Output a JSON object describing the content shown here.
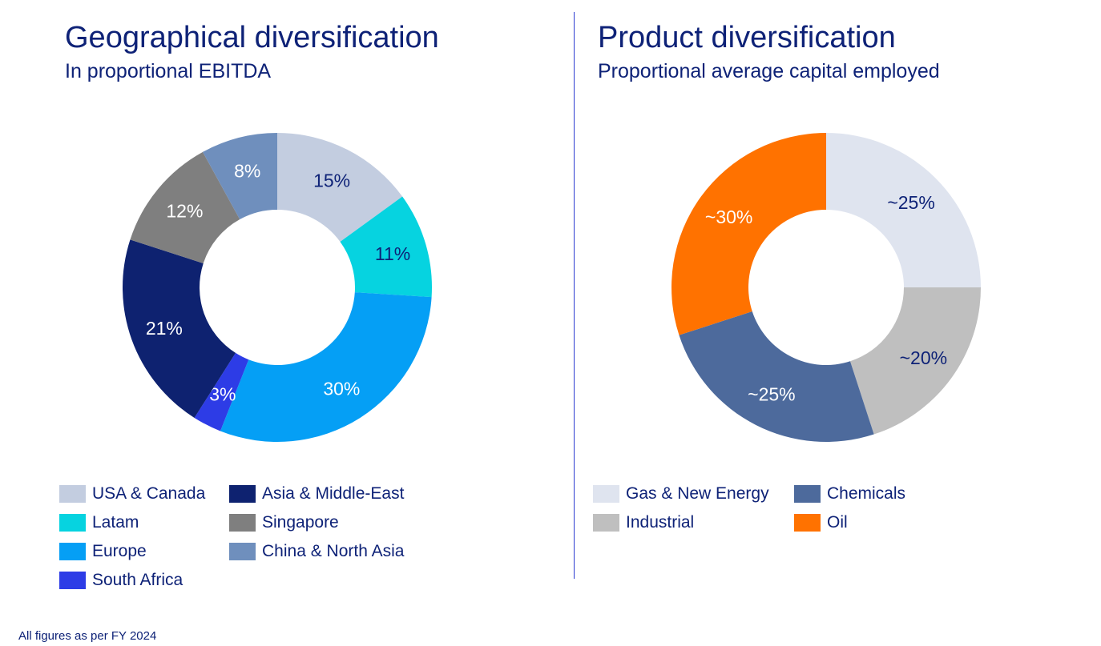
{
  "chart_data": [
    {
      "type": "pie",
      "title": "Geographical diversification",
      "subtitle": "In proportional EBITDA",
      "slices": [
        {
          "name": "USA & Canada",
          "value": 15,
          "label": "15%",
          "color": "#c3cde0",
          "label_color": "#0e2277"
        },
        {
          "name": "Latam",
          "value": 11,
          "label": "11%",
          "color": "#06d3e0",
          "label_color": "#0e2277"
        },
        {
          "name": "Europe",
          "value": 30,
          "label": "30%",
          "color": "#059ff5",
          "label_color": "#ffffff"
        },
        {
          "name": "South Africa",
          "value": 3,
          "label": "3%",
          "color": "#2d3ce6",
          "label_color": "#ffffff"
        },
        {
          "name": "Asia & Middle-East",
          "value": 21,
          "label": "21%",
          "color": "#0e2270",
          "label_color": "#ffffff"
        },
        {
          "name": "Singapore",
          "value": 12,
          "label": "12%",
          "color": "#7f7f7f",
          "label_color": "#ffffff"
        },
        {
          "name": "China & North Asia",
          "value": 8,
          "label": "8%",
          "color": "#6f8fbd",
          "label_color": "#ffffff"
        }
      ],
      "legend": [
        [
          "USA & Canada",
          "Asia & Middle-East"
        ],
        [
          "Latam",
          "Singapore"
        ],
        [
          "Europe",
          "China & North Asia"
        ],
        [
          "South Africa"
        ]
      ]
    },
    {
      "type": "pie",
      "title": "Product diversification",
      "subtitle": "Proportional average capital employed",
      "slices": [
        {
          "name": "Gas & New Energy",
          "value": 25,
          "label": "~25%",
          "color": "#dfe4ef",
          "label_color": "#0e2277"
        },
        {
          "name": "Industrial",
          "value": 20,
          "label": "~20%",
          "color": "#bfbfbf",
          "label_color": "#0e2277"
        },
        {
          "name": "Chemicals",
          "value": 25,
          "label": "~25%",
          "color": "#4d6a9c",
          "label_color": "#ffffff"
        },
        {
          "name": "Oil",
          "value": 30,
          "label": "~30%",
          "color": "#ff7200",
          "label_color": "#ffffff"
        }
      ],
      "legend": [
        [
          "Gas & New Energy",
          "Chemicals"
        ],
        [
          "Industrial",
          "Oil"
        ]
      ]
    }
  ],
  "footnote": "All figures as per FY 2024"
}
